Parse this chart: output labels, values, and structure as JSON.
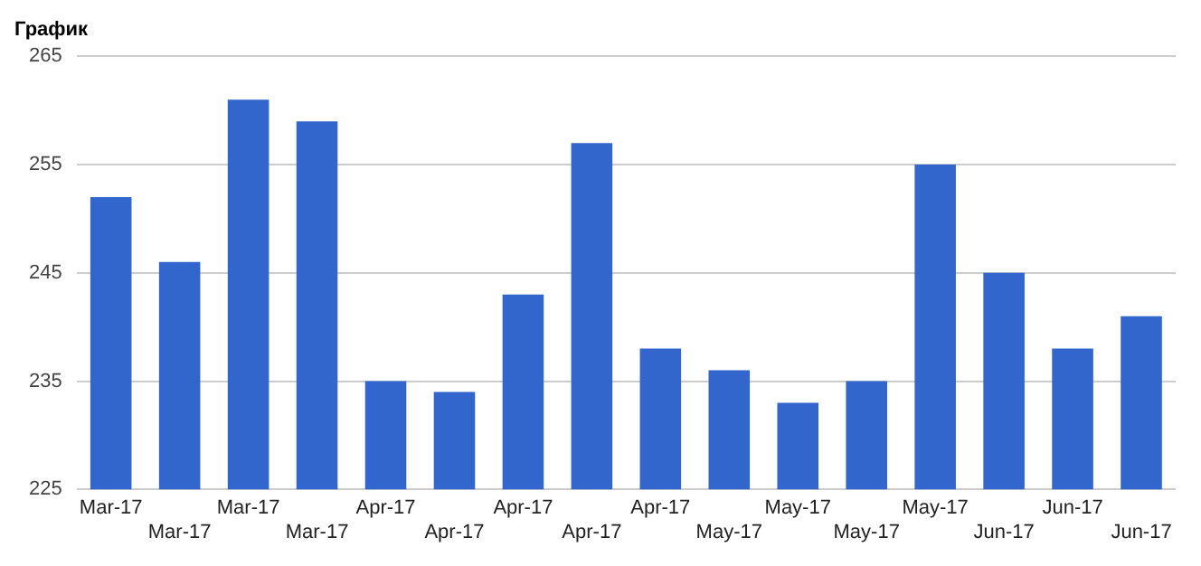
{
  "chart_data": {
    "type": "bar",
    "title": "График",
    "categories": [
      "Mar-17",
      "Mar-17",
      "Mar-17",
      "Mar-17",
      "Apr-17",
      "Apr-17",
      "Apr-17",
      "Apr-17",
      "Apr-17",
      "May-17",
      "May-17",
      "May-17",
      "May-17",
      "Jun-17",
      "Jun-17",
      "Jun-17"
    ],
    "values": [
      252,
      246,
      261,
      259,
      235,
      234,
      243,
      257,
      238,
      236,
      233,
      235,
      255,
      245,
      238,
      241
    ],
    "color": "#3366cc",
    "ylim": [
      225,
      265
    ],
    "yticks": [
      225,
      235,
      245,
      255,
      265
    ],
    "grid": "y",
    "legend": false
  }
}
